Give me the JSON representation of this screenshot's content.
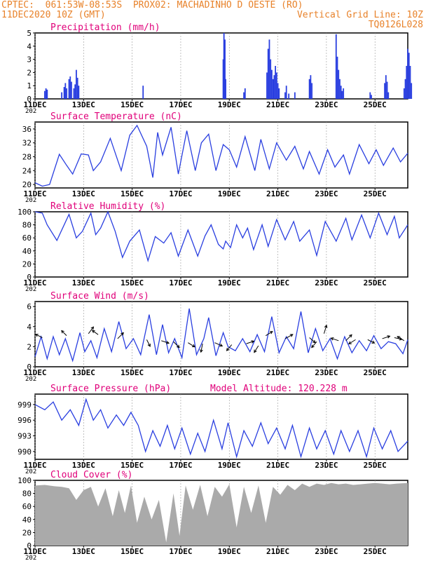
{
  "header": {
    "line1_left": "CPTEC:  061:53W-08:53S  PROX02: MACHADINHO D OESTE (RO)",
    "line2_left": "11DEC2020 10Z (GMT)",
    "line2_right": "Vertical Grid Line: 10Z",
    "line3_right": "TQ0126L028"
  },
  "colors": {
    "header": "#e8822a",
    "panel_title": "#e0007a",
    "series": "#2a3fe0",
    "cloud": "#aaaaaa"
  },
  "x_labels": [
    "11DEC",
    "13DEC",
    "15DEC",
    "17DEC",
    "19DEC",
    "21DEC",
    "23DEC",
    "25DEC"
  ],
  "year_fragment": "202",
  "chart_data": [
    {
      "type": "bar",
      "title": "Precipitation (mm/h)",
      "ylim": [
        0,
        5
      ],
      "yticks": [
        0,
        1,
        2,
        3,
        4,
        5
      ],
      "bars": [
        [
          0.4,
          0.6
        ],
        [
          0.45,
          0.8
        ],
        [
          0.5,
          0.7
        ],
        [
          1.1,
          0.5
        ],
        [
          1.2,
          0.9
        ],
        [
          1.25,
          1.2
        ],
        [
          1.3,
          0.8
        ],
        [
          1.4,
          1.5
        ],
        [
          1.45,
          1.7
        ],
        [
          1.5,
          1.3
        ],
        [
          1.6,
          0.8
        ],
        [
          1.65,
          1.1
        ],
        [
          1.7,
          2.2
        ],
        [
          1.75,
          1.6
        ],
        [
          1.8,
          1.0
        ],
        [
          4.45,
          1.0
        ],
        [
          7.75,
          3.0
        ],
        [
          7.78,
          5.0
        ],
        [
          7.82,
          4.5
        ],
        [
          7.85,
          1.5
        ],
        [
          8.6,
          0.5
        ],
        [
          8.65,
          0.8
        ],
        [
          9.55,
          2.0
        ],
        [
          9.6,
          3.8
        ],
        [
          9.65,
          4.5
        ],
        [
          9.7,
          3.0
        ],
        [
          9.75,
          2.2
        ],
        [
          9.8,
          1.5
        ],
        [
          9.85,
          1.8
        ],
        [
          9.9,
          2.5
        ],
        [
          9.95,
          2.0
        ],
        [
          10.0,
          1.2
        ],
        [
          10.05,
          0.8
        ],
        [
          10.3,
          0.5
        ],
        [
          10.35,
          1.0
        ],
        [
          10.45,
          0.4
        ],
        [
          10.7,
          0.5
        ],
        [
          11.3,
          1.5
        ],
        [
          11.35,
          1.8
        ],
        [
          11.4,
          1.2
        ],
        [
          12.4,
          4.9
        ],
        [
          12.45,
          3.2
        ],
        [
          12.5,
          2.2
        ],
        [
          12.55,
          1.5
        ],
        [
          12.6,
          1.0
        ],
        [
          12.65,
          0.6
        ],
        [
          12.7,
          0.8
        ],
        [
          13.8,
          0.5
        ],
        [
          13.85,
          0.3
        ],
        [
          14.4,
          1.2
        ],
        [
          14.45,
          1.8
        ],
        [
          14.5,
          1.3
        ],
        [
          14.55,
          0.5
        ],
        [
          15.2,
          0.8
        ],
        [
          15.25,
          1.5
        ],
        [
          15.3,
          2.5
        ],
        [
          15.35,
          3.8
        ],
        [
          15.4,
          3.5
        ],
        [
          15.45,
          2.5
        ],
        [
          15.5,
          1.2
        ]
      ]
    },
    {
      "type": "line",
      "title": "Surface Temperature (nC)",
      "ylim": [
        19,
        38
      ],
      "yticks": [
        20,
        24,
        28,
        32,
        36
      ],
      "x": [
        0,
        0.3,
        0.6,
        1.0,
        1.3,
        1.55,
        1.9,
        2.2,
        2.4,
        2.7,
        3.1,
        3.55,
        3.9,
        4.2,
        4.6,
        4.85,
        5.05,
        5.25,
        5.6,
        5.9,
        6.25,
        6.6,
        6.85,
        7.15,
        7.45,
        7.75,
        8.0,
        8.3,
        8.65,
        9.05,
        9.3,
        9.65,
        9.95,
        10.35,
        10.7,
        11.05,
        11.3,
        11.7,
        12.05,
        12.35,
        12.7,
        12.95,
        13.35,
        13.75,
        14.05,
        14.35,
        14.75,
        15.05,
        15.35
      ],
      "y": [
        20.5,
        19.5,
        20,
        28.7,
        25.5,
        23,
        28.8,
        28.5,
        24,
        26.5,
        33.3,
        24,
        34.2,
        37,
        31,
        22,
        35,
        28.5,
        36.5,
        23,
        35.5,
        24,
        32,
        34.5,
        24,
        31.5,
        30,
        25,
        33.8,
        24,
        33,
        24.5,
        32,
        27,
        31,
        24.5,
        29.5,
        23,
        30,
        25,
        28.5,
        23,
        31.5,
        26,
        30,
        25.5,
        30.5,
        26.5,
        29
      ]
    },
    {
      "type": "line",
      "title": "Relative Humidity (%)",
      "ylim": [
        0,
        100
      ],
      "yticks": [
        0,
        20,
        40,
        60,
        80,
        100
      ],
      "x": [
        0,
        0.3,
        0.5,
        0.9,
        1.4,
        1.7,
        1.95,
        2.3,
        2.5,
        2.7,
        3.0,
        3.3,
        3.6,
        3.9,
        4.3,
        4.65,
        4.95,
        5.3,
        5.6,
        5.9,
        6.3,
        6.7,
        7.0,
        7.25,
        7.55,
        7.75,
        7.85,
        8.05,
        8.3,
        8.55,
        8.75,
        9.0,
        9.35,
        9.6,
        9.95,
        10.3,
        10.65,
        10.9,
        11.3,
        11.6,
        11.95,
        12.4,
        12.8,
        13.05,
        13.45,
        13.8,
        14.15,
        14.5,
        14.8,
        15.0,
        15.35
      ],
      "y": [
        100,
        98,
        80,
        56,
        96,
        60,
        70,
        98,
        65,
        75,
        100,
        70,
        30,
        55,
        72,
        25,
        62,
        52,
        68,
        32,
        72,
        32,
        63,
        80,
        50,
        43,
        55,
        45,
        80,
        60,
        75,
        42,
        80,
        47,
        88,
        57,
        85,
        55,
        72,
        33,
        85,
        55,
        90,
        57,
        95,
        60,
        98,
        65,
        93,
        60,
        80
      ]
    },
    {
      "type": "line",
      "title": "Surface Wind (m/s)",
      "ylim": [
        0,
        6.5
      ],
      "yticks": [
        0,
        2,
        4,
        6
      ],
      "x": [
        0,
        0.25,
        0.5,
        0.75,
        1.0,
        1.25,
        1.55,
        1.85,
        2.05,
        2.3,
        2.55,
        2.85,
        3.15,
        3.45,
        3.75,
        4.05,
        4.35,
        4.7,
        5.0,
        5.25,
        5.5,
        5.75,
        6.05,
        6.35,
        6.65,
        6.95,
        7.15,
        7.45,
        7.75,
        7.95,
        8.25,
        8.55,
        8.85,
        9.15,
        9.45,
        9.75,
        10.05,
        10.35,
        10.65,
        10.95,
        11.25,
        11.55,
        11.85,
        12.15,
        12.45,
        12.75,
        13.05,
        13.35,
        13.65,
        13.95,
        14.25,
        14.55,
        14.85,
        15.15,
        15.35
      ],
      "y": [
        1.0,
        3.0,
        0.8,
        3.0,
        1.2,
        2.8,
        0.6,
        3.4,
        1.5,
        2.6,
        0.9,
        3.8,
        1.5,
        4.5,
        1.8,
        2.8,
        1.2,
        5.2,
        1.2,
        4.2,
        1.4,
        2.8,
        0.9,
        5.8,
        1.2,
        2.8,
        4.9,
        1.1,
        3.4,
        2.0,
        1.6,
        2.8,
        1.5,
        3.2,
        1.5,
        5.0,
        1.4,
        3.0,
        1.8,
        5.5,
        1.4,
        3.8,
        1.6,
        2.8,
        0.8,
        3.0,
        1.4,
        2.6,
        1.6,
        3.1,
        1.8,
        2.5,
        2.3,
        1.3,
        2.7
      ],
      "arrows": [
        [
          0.3,
          2.9,
          -0.8,
          -0.4
        ],
        [
          1.3,
          3.1,
          -0.6,
          -0.6
        ],
        [
          2.2,
          3.3,
          0.6,
          -0.8
        ],
        [
          2.6,
          3.2,
          -0.7,
          -0.5
        ],
        [
          3.4,
          2.8,
          0.7,
          -0.7
        ],
        [
          4.6,
          2.7,
          0.4,
          0.8
        ],
        [
          5.2,
          2.6,
          0.9,
          0.3
        ],
        [
          5.7,
          2.5,
          0.7,
          0.7
        ],
        [
          6.3,
          2.4,
          0.8,
          0.5
        ],
        [
          6.9,
          2.3,
          -0.2,
          1.0
        ],
        [
          7.4,
          2.4,
          0.9,
          0.4
        ],
        [
          8.1,
          2.2,
          -0.6,
          0.7
        ],
        [
          8.7,
          2.3,
          0.9,
          -0.3
        ],
        [
          9.2,
          2.1,
          -0.5,
          0.8
        ],
        [
          9.5,
          3.1,
          0.8,
          -0.5
        ],
        [
          10.3,
          2.8,
          0.9,
          -0.5
        ],
        [
          11.3,
          2.9,
          0.7,
          0.6
        ],
        [
          11.6,
          2.5,
          -0.6,
          0.7
        ],
        [
          11.9,
          3.3,
          0.3,
          -1.0
        ],
        [
          12.5,
          2.6,
          -0.9,
          -0.3
        ],
        [
          12.8,
          2.6,
          0.7,
          -0.7
        ],
        [
          13.2,
          2.7,
          -0.8,
          0.5
        ],
        [
          13.7,
          2.7,
          0.8,
          0.4
        ],
        [
          14.3,
          2.8,
          0.9,
          -0.3
        ],
        [
          14.8,
          2.9,
          0.9,
          0.2
        ],
        [
          15.2,
          2.6,
          -0.8,
          -0.5
        ]
      ]
    },
    {
      "type": "line",
      "title": "Surface Pressure (hPa)",
      "ylim": [
        988.5,
        1001
      ],
      "yticks": [
        990,
        993,
        996,
        999
      ],
      "x": [
        0,
        0.4,
        0.75,
        1.1,
        1.45,
        1.8,
        2.1,
        2.4,
        2.7,
        3.0,
        3.35,
        3.65,
        3.95,
        4.25,
        4.55,
        4.85,
        5.15,
        5.45,
        5.75,
        6.05,
        6.4,
        6.7,
        7.0,
        7.35,
        7.7,
        7.95,
        8.3,
        8.6,
        8.95,
        9.3,
        9.6,
        9.95,
        10.3,
        10.6,
        10.95,
        11.3,
        11.6,
        11.95,
        12.3,
        12.6,
        12.95,
        13.3,
        13.65,
        13.95,
        14.3,
        14.65,
        14.95,
        15.35
      ],
      "y": [
        999,
        998,
        999.5,
        996,
        998,
        995,
        1000,
        996,
        998,
        994.5,
        997,
        995,
        997.5,
        995,
        990,
        994,
        991,
        995,
        990.5,
        994.5,
        989.5,
        993.5,
        990,
        996,
        990.5,
        995.5,
        989,
        994,
        991,
        995.5,
        991.5,
        994.5,
        990.5,
        995,
        989,
        994.5,
        990.5,
        994,
        989.5,
        994,
        990,
        994,
        989,
        994.5,
        990.5,
        994,
        990,
        992
      ]
    },
    {
      "type": "area",
      "title": "Cloud Cover (%)",
      "ylim": [
        0,
        100
      ],
      "yticks": [
        0,
        20,
        40,
        60,
        80,
        100
      ],
      "x": [
        0,
        0.4,
        0.8,
        1.1,
        1.4,
        1.7,
        2.0,
        2.3,
        2.6,
        2.9,
        3.2,
        3.45,
        3.7,
        3.95,
        4.2,
        4.5,
        4.8,
        5.1,
        5.4,
        5.7,
        5.95,
        6.2,
        6.5,
        6.8,
        7.1,
        7.4,
        7.7,
        8.0,
        8.3,
        8.6,
        8.9,
        9.2,
        9.5,
        9.8,
        10.1,
        10.4,
        10.7,
        11.0,
        11.3,
        11.6,
        11.9,
        12.2,
        12.5,
        12.8,
        13.1,
        13.4,
        13.7,
        14.0,
        14.3,
        14.6,
        14.9,
        15.35
      ],
      "y": [
        92,
        93,
        91,
        90,
        88,
        70,
        85,
        90,
        60,
        88,
        45,
        85,
        50,
        92,
        35,
        75,
        40,
        70,
        5,
        80,
        15,
        92,
        55,
        93,
        45,
        90,
        75,
        94,
        28,
        90,
        50,
        92,
        35,
        90,
        78,
        93,
        85,
        95,
        90,
        95,
        93,
        96,
        94,
        95,
        93,
        94,
        95,
        96,
        95,
        94,
        95,
        96
      ]
    }
  ],
  "extra_labels": {
    "model_altitude": "Model Altitude: 120.228  m"
  }
}
